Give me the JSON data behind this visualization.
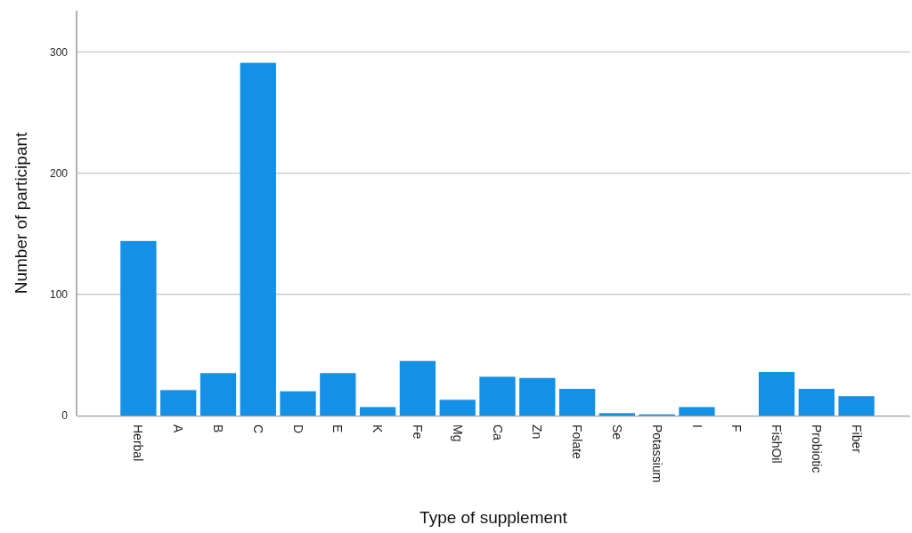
{
  "chart_data": {
    "type": "bar",
    "xlabel": "Type of supplement",
    "ylabel": "Number of participant",
    "categories": [
      "Herbal",
      "A",
      "B",
      "C",
      "D",
      "E",
      "K",
      "Fe",
      "Mg",
      "Ca",
      "Zn",
      "Folate",
      "Se",
      "Potassium",
      "I",
      "F",
      "FishOil",
      "Probiotic",
      "Fiber"
    ],
    "values": [
      144,
      21,
      35,
      291,
      20,
      35,
      7,
      45,
      13,
      32,
      31,
      22,
      2,
      1,
      7,
      0,
      36,
      22,
      16
    ],
    "color": "#1490e6",
    "ylim": [
      0,
      334
    ],
    "yticks": [
      0,
      100,
      200,
      300
    ],
    "grid": "y"
  }
}
